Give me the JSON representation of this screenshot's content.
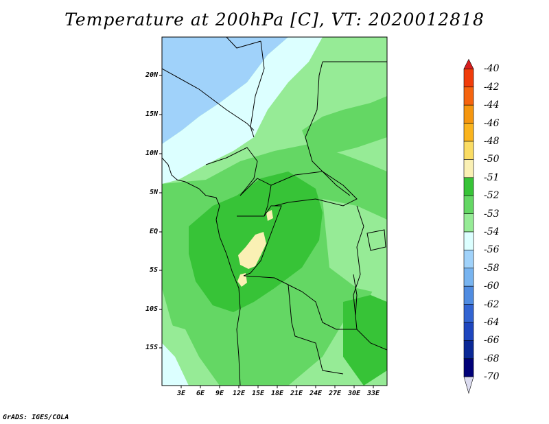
{
  "title": "Temperature at 200hPa [C], VT: 2020012818",
  "credit": "GrADS: IGES/COLA",
  "lat_labels": [
    "20N",
    "15N",
    "10N",
    "5N",
    "EQ",
    "5S",
    "10S",
    "15S"
  ],
  "lon_labels": [
    "3E",
    "6E",
    "9E",
    "12E",
    "15E",
    "18E",
    "21E",
    "24E",
    "27E",
    "30E",
    "33E"
  ],
  "colorbar": {
    "labels": [
      "-40",
      "-42",
      "-44",
      "-46",
      "-48",
      "-50",
      "-51",
      "-52",
      "-53",
      "-54",
      "-56",
      "-58",
      "-60",
      "-62",
      "-64",
      "-66",
      "-68",
      "-70"
    ],
    "colors": [
      "#d81e1e",
      "#f03c0a",
      "#f5640f",
      "#f5960f",
      "#fab41e",
      "#fadc64",
      "#faf0b4",
      "#37c337",
      "#64d764",
      "#96eb96",
      "#dcffff",
      "#a0d2fa",
      "#78b4f0",
      "#508ce1",
      "#3264d2",
      "#1e46be",
      "#0a2896",
      "#000078",
      "#dcdcf0"
    ]
  },
  "map": {
    "regions": [
      {
        "name": "sahara-west",
        "color": "#a0d2fa"
      },
      {
        "name": "sahel",
        "color": "#dcffff"
      },
      {
        "name": "east",
        "color": "#96eb96"
      },
      {
        "name": "central",
        "color": "#64d764"
      },
      {
        "name": "congo-core",
        "color": "#37c337"
      },
      {
        "name": "warm-patch",
        "color": "#faf0b4"
      }
    ]
  }
}
